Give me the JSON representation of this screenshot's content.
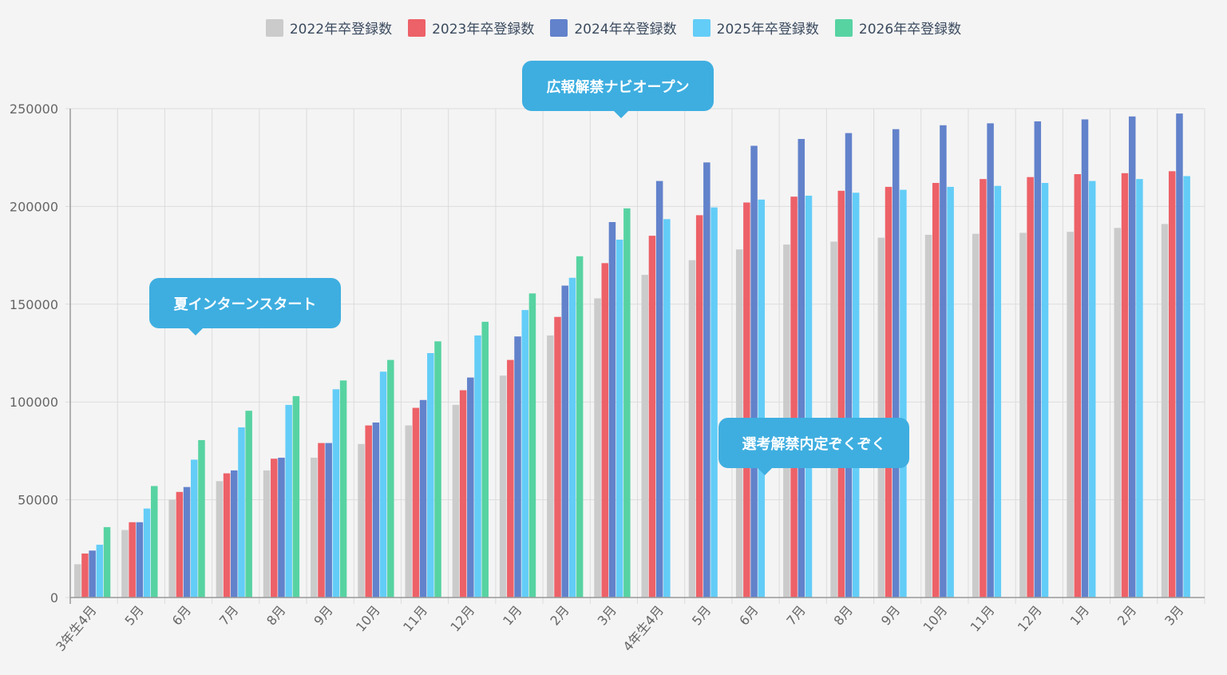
{
  "chart_data": {
    "type": "bar",
    "title": "",
    "xlabel": "",
    "ylabel": "",
    "ylim": [
      0,
      250000
    ],
    "yticks": [
      0,
      50000,
      100000,
      150000,
      200000,
      250000
    ],
    "grid": true,
    "legend_position": "top-center",
    "categories": [
      "3年生4月",
      "5月",
      "6月",
      "7月",
      "8月",
      "9月",
      "10月",
      "11月",
      "12月",
      "1月",
      "2月",
      "3月",
      "4年生4月",
      "5月",
      "6月",
      "7月",
      "8月",
      "9月",
      "10月",
      "11月",
      "12月",
      "1月",
      "2月",
      "3月"
    ],
    "series": [
      {
        "name": "2022年卒登録数",
        "color": "#cbcbcb",
        "values": [
          17000,
          34500,
          50000,
          59500,
          65000,
          71500,
          78500,
          88000,
          98500,
          113500,
          134000,
          153000,
          165000,
          172500,
          178000,
          180500,
          182000,
          184000,
          185500,
          186000,
          186500,
          187000,
          189000,
          191000
        ]
      },
      {
        "name": "2023年卒登録数",
        "color": "#ed6168",
        "values": [
          22500,
          38500,
          54000,
          63500,
          71000,
          79000,
          88000,
          97000,
          106000,
          121500,
          143500,
          171000,
          185000,
          195500,
          202000,
          205000,
          208000,
          210000,
          212000,
          214000,
          215000,
          216500,
          217000,
          218000
        ]
      },
      {
        "name": "2024年卒登録数",
        "color": "#6282cb",
        "values": [
          24000,
          38500,
          56500,
          65000,
          71500,
          79000,
          89500,
          101000,
          112500,
          133500,
          159500,
          192000,
          213000,
          222500,
          231000,
          234500,
          237500,
          239500,
          241500,
          242500,
          243500,
          244500,
          246000,
          247500
        ]
      },
      {
        "name": "2025年卒登録数",
        "color": "#63cdf7",
        "values": [
          27000,
          45500,
          70500,
          87000,
          98500,
          106500,
          115500,
          125000,
          134000,
          147000,
          163500,
          183000,
          193500,
          199500,
          203500,
          205500,
          207000,
          208500,
          210000,
          210500,
          212000,
          213000,
          214000,
          215500
        ]
      },
      {
        "name": "2026年卒登録数",
        "color": "#57d3a2",
        "values": [
          36000,
          57000,
          80500,
          95500,
          103000,
          111000,
          121500,
          131000,
          141000,
          155500,
          174500,
          199000,
          null,
          null,
          null,
          null,
          null,
          null,
          null,
          null,
          null,
          null,
          null,
          null
        ]
      }
    ],
    "annotations": [
      {
        "label": "夏インターンスタート",
        "category_index": 2
      },
      {
        "label": "広報解禁ナビオープン",
        "category_index": 11
      },
      {
        "label": "選考解禁内定ぞくぞく",
        "category_index": 14
      }
    ]
  }
}
